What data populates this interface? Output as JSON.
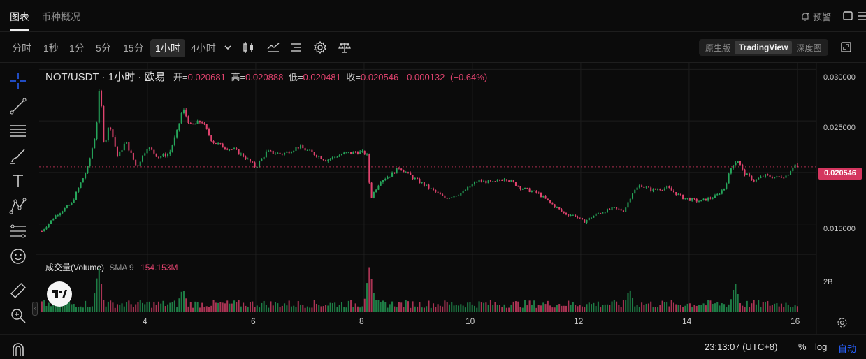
{
  "tabs": [
    {
      "label": "图表",
      "active": true
    },
    {
      "label": "币种概况",
      "active": false
    }
  ],
  "header": {
    "alert_label": "预警"
  },
  "toolbar": {
    "timeframes": [
      "分时",
      "1秒",
      "1分",
      "5分",
      "15分",
      "1小时",
      "4小时"
    ],
    "active_timeframe": "1小时",
    "views": [
      "原生版",
      "TradingView",
      "深度图"
    ],
    "active_view": "TradingView"
  },
  "legend": {
    "symbol": "NOT/USDT · 1小时 · 欧易",
    "open_label": "开=",
    "open": "0.020681",
    "high_label": "高=",
    "high": "0.020888",
    "low_label": "低=",
    "low": "0.020481",
    "close_label": "收=",
    "close": "0.020546",
    "change": "-0.000132",
    "change_pct": "(−0.64%)"
  },
  "volume_legend": {
    "title": "成交量(Volume)",
    "sma": "SMA 9",
    "value": "154.153M"
  },
  "price_tag": "0.020546",
  "bottom": {
    "time": "23:13:07 (UTC+8)",
    "percent": "%",
    "log": "log",
    "auto": "自动"
  },
  "colors": {
    "up": "#26a65b",
    "down": "#e0436e",
    "bg": "#0b0b0b",
    "grid": "#1c1c1c",
    "accent": "#2962ff"
  },
  "chart_data": {
    "type": "candlestick",
    "symbol": "NOT/USDT",
    "interval": "1小时",
    "y_ticks": [
      "0.030000",
      "0.025000",
      "0.015000"
    ],
    "ylim": [
      0.0122,
      0.0305
    ],
    "x_ticks": [
      "4",
      "6",
      "8",
      "10",
      "12",
      "14",
      "16"
    ],
    "x_tick_values": [
      4,
      6,
      8,
      10,
      12,
      14,
      16
    ],
    "xlim": [
      2.0,
      16.35
    ],
    "last_price": 0.020546,
    "volume_ticks": [
      "2B"
    ],
    "volume_tick_values": [
      2000000000
    ],
    "volume_max": 3200000000,
    "close_path": [
      [
        2.05,
        0.0143
      ],
      [
        2.3,
        0.0158
      ],
      [
        2.6,
        0.017
      ],
      [
        2.9,
        0.0205
      ],
      [
        3.05,
        0.024
      ],
      [
        3.12,
        0.0285
      ],
      [
        3.2,
        0.0225
      ],
      [
        3.3,
        0.0248
      ],
      [
        3.45,
        0.0215
      ],
      [
        3.6,
        0.023
      ],
      [
        3.8,
        0.0205
      ],
      [
        4.0,
        0.0225
      ],
      [
        4.2,
        0.0215
      ],
      [
        4.4,
        0.0218
      ],
      [
        4.55,
        0.024
      ],
      [
        4.65,
        0.0262
      ],
      [
        4.8,
        0.0245
      ],
      [
        5.0,
        0.025
      ],
      [
        5.2,
        0.023
      ],
      [
        5.4,
        0.0225
      ],
      [
        5.6,
        0.0222
      ],
      [
        5.8,
        0.0215
      ],
      [
        6.0,
        0.0205
      ],
      [
        6.2,
        0.022
      ],
      [
        6.5,
        0.0218
      ],
      [
        6.8,
        0.0225
      ],
      [
        7.0,
        0.022
      ],
      [
        7.3,
        0.0212
      ],
      [
        7.6,
        0.0218
      ],
      [
        7.9,
        0.022
      ],
      [
        8.05,
        0.0218
      ],
      [
        8.12,
        0.0175
      ],
      [
        8.3,
        0.0192
      ],
      [
        8.5,
        0.0198
      ],
      [
        8.65,
        0.0205
      ],
      [
        8.9,
        0.0195
      ],
      [
        9.2,
        0.0185
      ],
      [
        9.5,
        0.0175
      ],
      [
        9.8,
        0.018
      ],
      [
        10.1,
        0.0192
      ],
      [
        10.4,
        0.019
      ],
      [
        10.6,
        0.0195
      ],
      [
        10.9,
        0.0185
      ],
      [
        11.2,
        0.018
      ],
      [
        11.5,
        0.0168
      ],
      [
        11.7,
        0.016
      ],
      [
        11.9,
        0.0158
      ],
      [
        12.05,
        0.0152
      ],
      [
        12.3,
        0.016
      ],
      [
        12.6,
        0.0165
      ],
      [
        12.8,
        0.0163
      ],
      [
        12.95,
        0.018
      ],
      [
        13.1,
        0.0188
      ],
      [
        13.3,
        0.0183
      ],
      [
        13.6,
        0.0185
      ],
      [
        13.9,
        0.0175
      ],
      [
        14.2,
        0.0172
      ],
      [
        14.5,
        0.0177
      ],
      [
        14.65,
        0.0185
      ],
      [
        14.8,
        0.0208
      ],
      [
        14.9,
        0.0212
      ],
      [
        15.0,
        0.02
      ],
      [
        15.2,
        0.0192
      ],
      [
        15.4,
        0.0197
      ],
      [
        15.6,
        0.0195
      ],
      [
        15.8,
        0.0197
      ],
      [
        15.95,
        0.0208
      ],
      [
        16.0,
        0.02055
      ]
    ],
    "volume_bursts": [
      [
        3.1,
        3.0
      ],
      [
        4.65,
        1.5
      ],
      [
        8.1,
        3.1
      ],
      [
        14.85,
        1.9
      ],
      [
        12.9,
        1.5
      ]
    ]
  }
}
